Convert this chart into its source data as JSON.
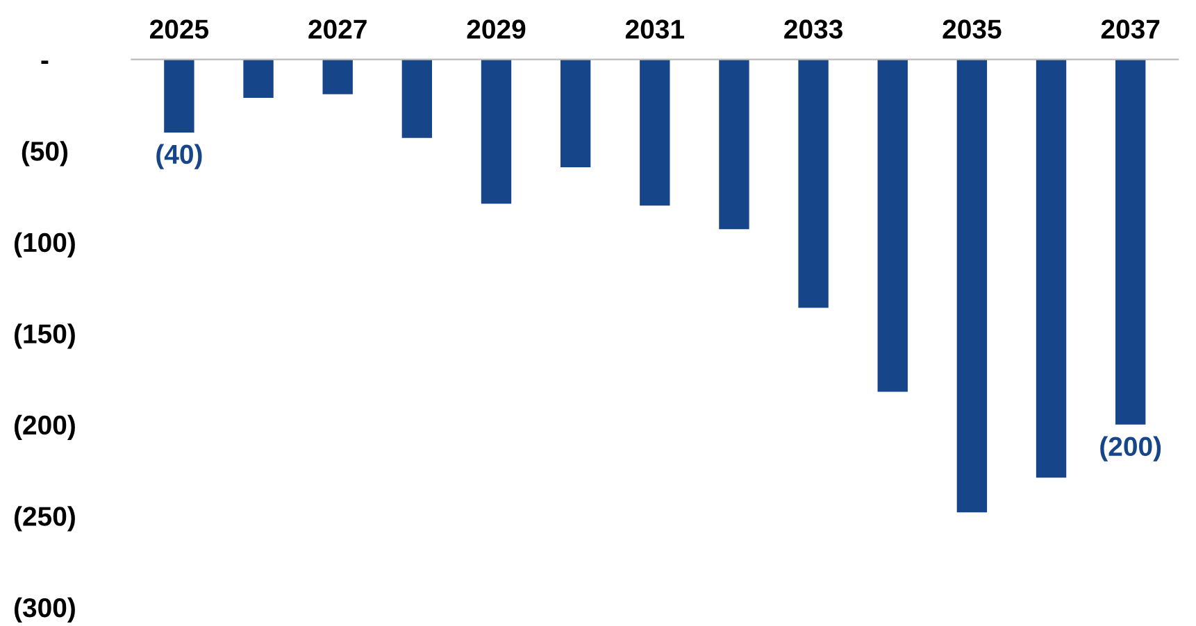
{
  "chart_data": {
    "type": "bar",
    "categories": [
      "2025",
      null,
      "2027",
      null,
      "2029",
      null,
      "2031",
      null,
      "2033",
      null,
      "2035",
      null,
      "2037"
    ],
    "values": [
      -40,
      -21,
      -19,
      -43,
      -79,
      -59,
      -80,
      -93,
      -136,
      -182,
      -248,
      -229,
      -200
    ],
    "color": "#17458a",
    "value_labels": [
      "(40)",
      null,
      null,
      null,
      null,
      null,
      null,
      null,
      null,
      null,
      null,
      null,
      "(200)"
    ],
    "ylim": [
      -300,
      0
    ],
    "yticks": [
      {
        "value": 0,
        "label": "-"
      },
      {
        "value": -50,
        "label": "(50)"
      },
      {
        "value": -100,
        "label": "(100)"
      },
      {
        "value": -150,
        "label": "(150)"
      },
      {
        "value": -200,
        "label": "(200)"
      },
      {
        "value": -250,
        "label": "(250)"
      },
      {
        "value": -300,
        "label": "(300)"
      }
    ],
    "grid": false,
    "legend": false
  }
}
